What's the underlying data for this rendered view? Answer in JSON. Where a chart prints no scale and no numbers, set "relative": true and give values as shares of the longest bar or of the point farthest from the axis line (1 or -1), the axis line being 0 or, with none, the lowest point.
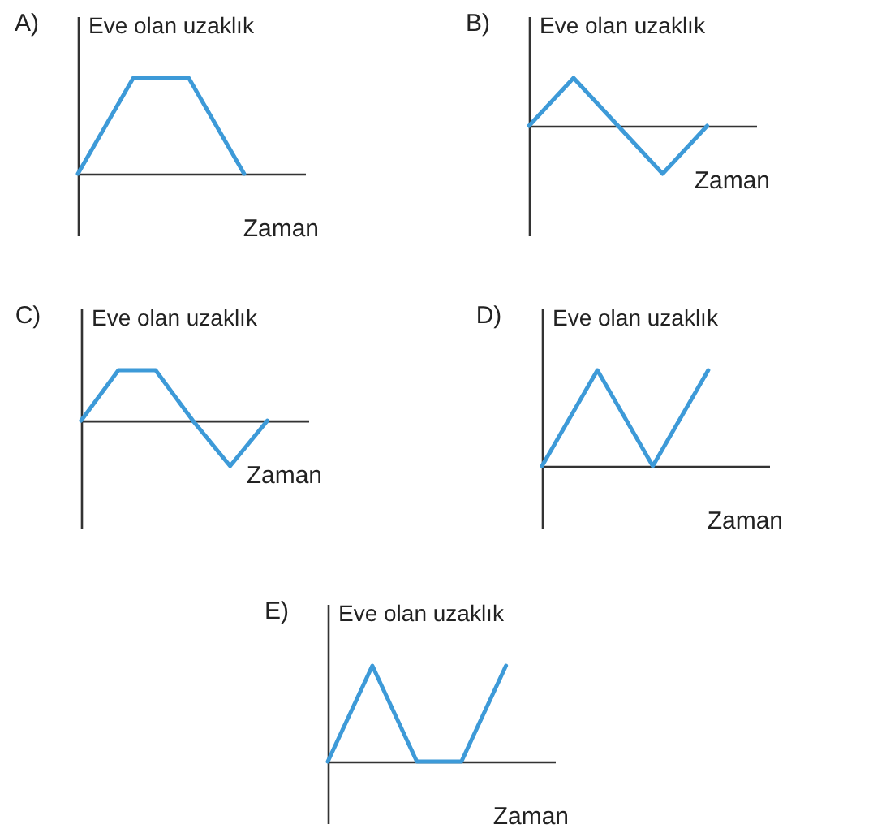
{
  "chart_data": [
    {
      "type": "line",
      "title": "A)",
      "ylabel": "Eve olan uzaklık",
      "xlabel": "Zaman",
      "relative": true,
      "categories": [
        null,
        null,
        null,
        null
      ],
      "series": [
        {
          "color": "#3d9ad8",
          "values": [
            0,
            1,
            1,
            0
          ]
        }
      ]
    },
    {
      "type": "line",
      "title": "B)",
      "ylabel": "Eve olan uzaklık",
      "xlabel": "Zaman",
      "relative": true,
      "categories": [
        null,
        null,
        null,
        null,
        null
      ],
      "series": [
        {
          "color": "#3d9ad8",
          "values": [
            0,
            1,
            0,
            -1,
            0
          ]
        }
      ]
    },
    {
      "type": "line",
      "title": "C)",
      "ylabel": "Eve olan uzaklık",
      "xlabel": "Zaman",
      "relative": true,
      "categories": [
        null,
        null,
        null,
        null,
        null,
        null
      ],
      "series": [
        {
          "color": "#3d9ad8",
          "values": [
            0,
            1,
            1,
            0,
            -0.9,
            0
          ]
        }
      ]
    },
    {
      "type": "line",
      "title": "D)",
      "ylabel": "Eve olan uzaklık",
      "xlabel": "Zaman",
      "relative": true,
      "categories": [
        null,
        null,
        null,
        null
      ],
      "series": [
        {
          "color": "#3d9ad8",
          "values": [
            0,
            1,
            0,
            1
          ]
        }
      ]
    },
    {
      "type": "line",
      "title": "E)",
      "ylabel": "Eve olan uzaklık",
      "xlabel": "Zaman",
      "relative": true,
      "categories": [
        null,
        null,
        null,
        null,
        null
      ],
      "series": [
        {
          "color": "#3d9ad8",
          "values": [
            0,
            1,
            0,
            0,
            1
          ]
        }
      ]
    }
  ]
}
